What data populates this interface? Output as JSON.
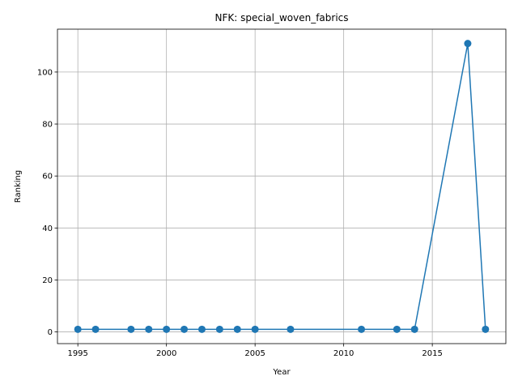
{
  "chart_data": {
    "type": "line",
    "title": "NFK: special_woven_fabrics",
    "xlabel": "Year",
    "ylabel": "Ranking",
    "x": [
      1995,
      1996,
      1998,
      1999,
      2000,
      2001,
      2002,
      2003,
      2004,
      2005,
      2007,
      2011,
      2013,
      2014,
      2017,
      2018
    ],
    "y": [
      1,
      1,
      1,
      1,
      1,
      1,
      1,
      1,
      1,
      1,
      1,
      1,
      1,
      1,
      111,
      1
    ],
    "xlim": [
      1993.85,
      2019.15
    ],
    "ylim": [
      -4.5,
      116.5
    ],
    "xticks": [
      1995,
      2000,
      2005,
      2010,
      2015
    ],
    "yticks": [
      0,
      20,
      40,
      60,
      80,
      100
    ],
    "grid": true,
    "line_color": "#1f77b4",
    "marker": "circle"
  }
}
